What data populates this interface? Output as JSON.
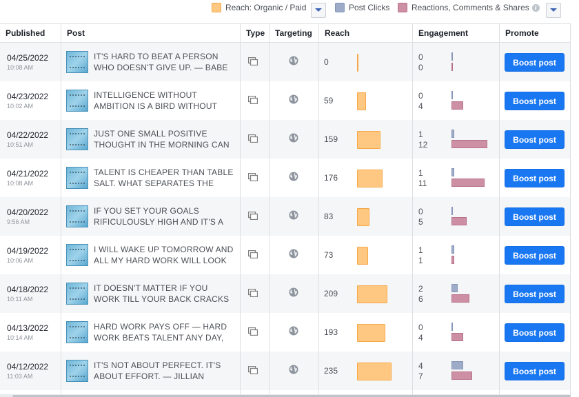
{
  "legend": {
    "reach": "Reach: Organic / Paid",
    "clicks": "Post Clicks",
    "engagement": "Reactions, Comments & Shares",
    "info_glyph": "i",
    "colors": {
      "reach": "#ffc882",
      "clicks": "#9eabc8",
      "engagement": "#cc8fa3"
    }
  },
  "columns": {
    "published": "Published",
    "post": "Post",
    "type": "Type",
    "targeting": "Targeting",
    "reach": "Reach",
    "engagement": "Engagement",
    "promote": "Promote"
  },
  "icons": {
    "type": "album-icon",
    "targeting": "globe-icon",
    "dropdown": "chevron-down-icon"
  },
  "boost_label": "Boost post",
  "posts": [
    {
      "date": "04/25/2022",
      "time": "10:08 AM",
      "text": "IT'S HARD TO BEAT A PERSON WHO DOESN'T GIVE UP. — BABE",
      "reach": 0,
      "clicks": 0,
      "reactions": 0
    },
    {
      "date": "04/23/2022",
      "time": "10:02 AM",
      "text": "INTELLIGENCE WITHOUT AMBITION IS A BIRD WITHOUT",
      "reach": 59,
      "clicks": 0,
      "reactions": 4
    },
    {
      "date": "04/22/2022",
      "time": "10:51 AM",
      "text": "JUST ONE SMALL POSITIVE THOUGHT IN THE MORNING CAN",
      "reach": 159,
      "clicks": 1,
      "reactions": 12
    },
    {
      "date": "04/21/2022",
      "time": "10:08 AM",
      "text": "TALENT IS CHEAPER THAN TABLE SALT. WHAT SEPARATES THE",
      "reach": 176,
      "clicks": 1,
      "reactions": 11
    },
    {
      "date": "04/20/2022",
      "time": "9:56 AM",
      "text": "IF YOU SET YOUR GOALS RIFICULOUSLY HIGH AND IT'S A",
      "reach": 83,
      "clicks": 0,
      "reactions": 5
    },
    {
      "date": "04/19/2022",
      "time": "10:06 AM",
      "text": "I WILL WAKE UP TOMORROW AND ALL MY HARD WORK WILL LOOK",
      "reach": 73,
      "clicks": 1,
      "reactions": 1
    },
    {
      "date": "04/18/2022",
      "time": "10:11 AM",
      "text": "IT DOESN'T MATTER IF YOU WORK TILL YOUR BACK CRACKS AS",
      "reach": 209,
      "clicks": 2,
      "reactions": 6
    },
    {
      "date": "04/13/2022",
      "time": "10:14 AM",
      "text": "HARD WORK PAYS OFF — HARD WORK BEATS TALENT ANY DAY,",
      "reach": 193,
      "clicks": 0,
      "reactions": 4
    },
    {
      "date": "04/12/2022",
      "time": "11:03 AM",
      "text": "IT'S NOT ABOUT PERFECT. IT'S ABOUT EFFORT. — JILLIAN",
      "reach": 235,
      "clicks": 4,
      "reactions": 7
    }
  ]
}
